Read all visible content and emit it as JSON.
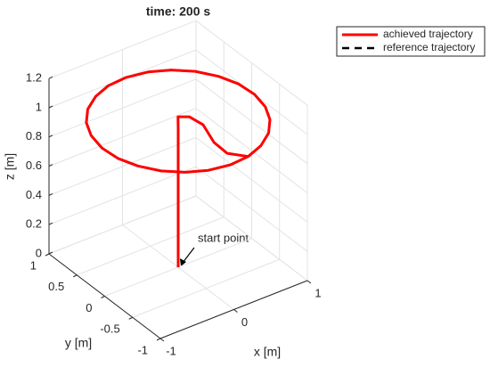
{
  "chart_data": {
    "type": "line3d",
    "title": "time: 200 s",
    "xlabel": "x [m]",
    "ylabel": "y [m]",
    "zlabel": "z [m]",
    "xlim": [
      -1,
      1
    ],
    "ylim": [
      -1,
      1
    ],
    "zlim": [
      0,
      1.2
    ],
    "xticks": [
      -1,
      0,
      1
    ],
    "yticks": [
      -1,
      -0.5,
      0,
      0.5,
      1
    ],
    "zticks": [
      0,
      0.2,
      0.4,
      0.6,
      0.8,
      1,
      1.2
    ],
    "grid": true,
    "legend": "northeastoutside",
    "annotations": [
      {
        "text": "start point"
      }
    ],
    "series": [
      {
        "name": "achieved trajectory",
        "color": "#ff0000",
        "dash": false,
        "x": [
          0,
          0,
          0,
          0,
          0,
          0.05,
          0.15,
          0.18,
          0.07,
          0.06,
          0.21,
          0.45,
          0.67,
          0.84,
          0.95,
          1.0,
          0.98,
          0.89,
          0.74,
          0.54,
          0.31,
          0.05,
          -0.21,
          -0.45,
          -0.67,
          -0.84,
          -0.95,
          -1.0,
          -0.98,
          -0.89,
          -0.74,
          -0.54,
          -0.31,
          -0.05,
          0.21
        ],
        "y": [
          0,
          0,
          0,
          0,
          0,
          0.07,
          0,
          -0.21,
          -0.55,
          -0.8,
          -0.98,
          -0.89,
          -0.74,
          -0.54,
          -0.31,
          -0.05,
          0.21,
          0.45,
          0.67,
          0.84,
          0.95,
          1.0,
          0.98,
          0.89,
          0.74,
          0.54,
          0.31,
          0.05,
          -0.21,
          -0.45,
          -0.67,
          -0.84,
          -0.95,
          -1.0,
          -0.98
        ],
        "z": [
          0,
          0.3,
          0.6,
          0.9,
          0.95,
          1,
          1,
          1,
          1,
          1,
          1,
          1,
          1,
          1,
          1,
          1,
          1,
          1,
          1,
          1,
          1,
          1,
          1,
          1,
          1,
          1,
          1,
          1,
          1,
          1,
          1,
          1,
          1,
          1,
          1
        ]
      },
      {
        "name": "reference trajectory",
        "color": "#000000",
        "dash": true,
        "x": [
          0.21,
          0.45,
          0.67,
          0.84,
          0.95,
          1.0,
          0.98,
          0.89,
          0.74,
          0.54,
          0.31,
          0.05,
          -0.21,
          -0.45,
          -0.67,
          -0.84,
          -0.95,
          -1.0,
          -0.98,
          -0.89,
          -0.74,
          -0.54,
          -0.31,
          -0.05,
          0.21
        ],
        "y": [
          -0.98,
          -0.89,
          -0.74,
          -0.54,
          -0.31,
          -0.05,
          0.21,
          0.45,
          0.67,
          0.84,
          0.95,
          1.0,
          0.98,
          0.89,
          0.74,
          0.54,
          0.31,
          0.05,
          -0.21,
          -0.45,
          -0.67,
          -0.84,
          -0.95,
          -1.0,
          -0.98
        ],
        "z": [
          1,
          1,
          1,
          1,
          1,
          1,
          1,
          1,
          1,
          1,
          1,
          1,
          1,
          1,
          1,
          1,
          1,
          1,
          1,
          1,
          1,
          1,
          1,
          1,
          1
        ]
      }
    ]
  }
}
